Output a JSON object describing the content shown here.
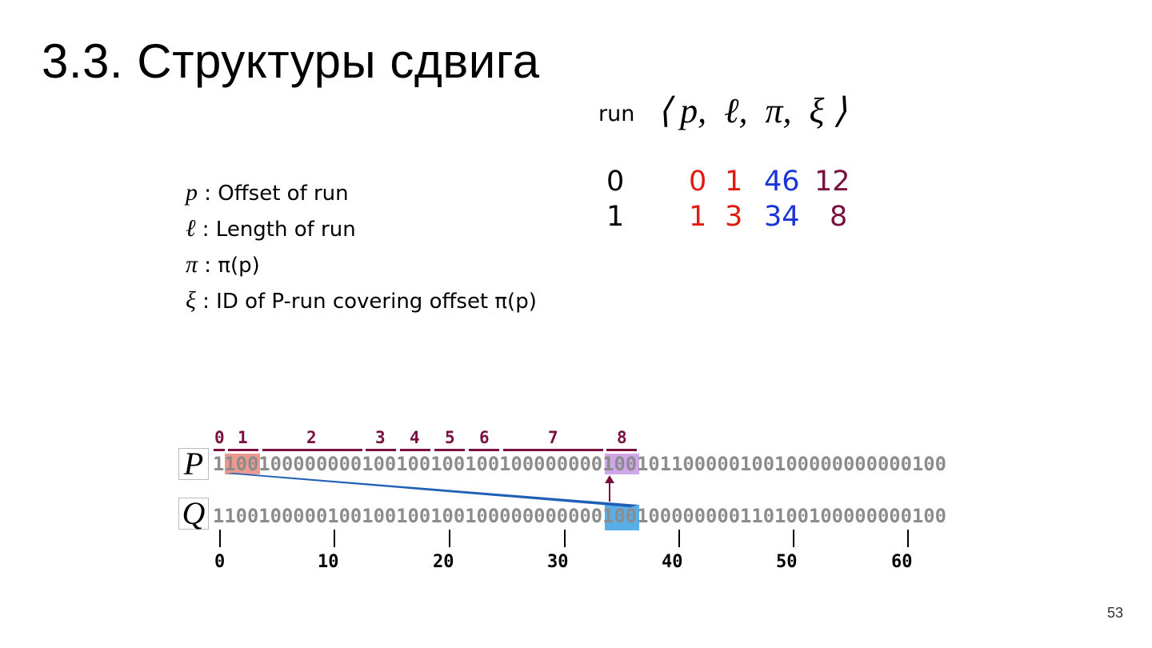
{
  "slide": {
    "title": "3.3. Структуры сдвига",
    "number": "53"
  },
  "table": {
    "header_run": "run",
    "header_tuple": "⟨ p,  ℓ,  π,  ξ ⟩",
    "rows": [
      {
        "run": "0",
        "p": "0",
        "l": "1",
        "pi": "46",
        "xi": "12"
      },
      {
        "run": "1",
        "p": "1",
        "l": "3",
        "pi": "34",
        "xi": "8"
      }
    ]
  },
  "legend": [
    {
      "sym": "p",
      "text": " : Offset of run"
    },
    {
      "sym": "ℓ",
      "text": " : Length of run"
    },
    {
      "sym": "π",
      "text": " : π(p)"
    },
    {
      "sym": "ξ",
      "text": " : ID of P-run covering offset π(p)"
    }
  ],
  "figure": {
    "p_label": "P",
    "q_label": "Q",
    "p_sequence": "1100100000000100100100100100000000100101100000100100000000000100",
    "q_sequence": "1100100000100100100100100000000000100100000000110100100000000100",
    "run_labels": [
      "0",
      "1",
      "2",
      "3",
      "4",
      "5",
      "6",
      "7",
      "8"
    ],
    "axis_ticks": [
      "0",
      "10",
      "20",
      "30",
      "40",
      "50",
      "60"
    ],
    "colors": {
      "red_highlight": "#ec9a8f",
      "purple_highlight": "#cfa6e8",
      "blue_highlight": "#5aaee6",
      "run_color": "#7a1040",
      "link_color": "#1f5fb5"
    }
  }
}
